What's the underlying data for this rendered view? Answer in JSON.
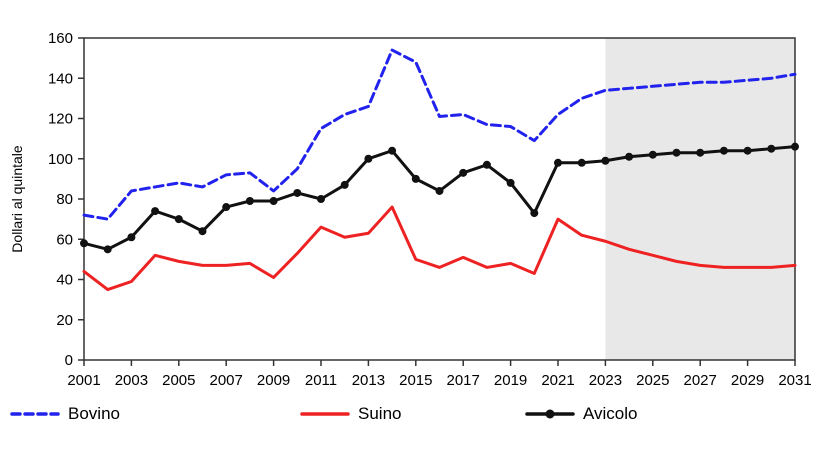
{
  "chart_data": {
    "type": "line",
    "title": "",
    "xlabel": "",
    "ylabel": "Dollari al quintale",
    "xlim": [
      2001,
      2031
    ],
    "ylim": [
      0,
      160
    ],
    "xticks": [
      2001,
      2003,
      2005,
      2007,
      2009,
      2011,
      2013,
      2015,
      2017,
      2019,
      2021,
      2023,
      2025,
      2027,
      2029,
      2031
    ],
    "yticks": [
      0,
      20,
      40,
      60,
      80,
      100,
      120,
      140,
      160
    ],
    "grid": false,
    "legend_position": "bottom",
    "forecast_start": 2023,
    "forecast_shade_color": "#e8e8e8",
    "frame_color": "#333333",
    "x": [
      2001,
      2002,
      2003,
      2004,
      2005,
      2006,
      2007,
      2008,
      2009,
      2010,
      2011,
      2012,
      2013,
      2014,
      2015,
      2016,
      2017,
      2018,
      2019,
      2020,
      2021,
      2022,
      2023,
      2024,
      2025,
      2026,
      2027,
      2028,
      2029,
      2030,
      2031
    ],
    "series": [
      {
        "name": "Bovino",
        "color": "#2222ee",
        "dash": "9 5",
        "marker": false,
        "width": 3,
        "values": [
          72,
          70,
          84,
          86,
          88,
          86,
          92,
          93,
          84,
          95,
          115,
          122,
          126,
          154,
          148,
          121,
          122,
          117,
          116,
          109,
          122,
          130,
          134,
          135,
          136,
          137,
          138,
          138,
          139,
          140,
          142
        ]
      },
      {
        "name": "Suino",
        "color": "#ee2222",
        "dash": null,
        "marker": false,
        "width": 3,
        "values": [
          44,
          35,
          39,
          52,
          49,
          47,
          47,
          48,
          41,
          53,
          66,
          61,
          63,
          76,
          50,
          46,
          51,
          46,
          48,
          43,
          70,
          62,
          59,
          55,
          52,
          49,
          47,
          46,
          46,
          46,
          47
        ]
      },
      {
        "name": "Avicolo",
        "color": "#111111",
        "dash": null,
        "marker": true,
        "width": 3,
        "values": [
          58,
          55,
          61,
          74,
          70,
          64,
          76,
          79,
          79,
          83,
          80,
          87,
          100,
          104,
          90,
          84,
          93,
          97,
          88,
          73,
          98,
          98,
          99,
          101,
          102,
          103,
          103,
          104,
          104,
          105,
          106
        ]
      }
    ]
  }
}
